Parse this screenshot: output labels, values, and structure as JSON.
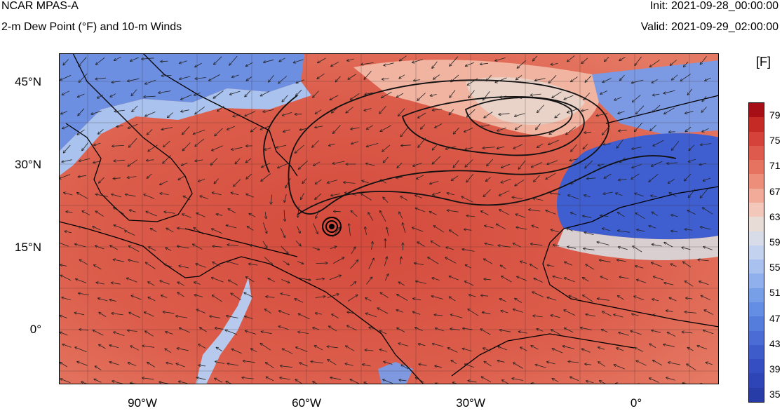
{
  "header": {
    "title": "NCAR MPAS-A",
    "subtitle": "2-m Dew Point (°F) and 10-m Winds",
    "init": "Init: 2021-09-28_00:00:00",
    "valid": "Valid: 2021-09-29_02:00:00"
  },
  "map": {
    "lat_labels": [
      "45°N",
      "30°N",
      "15°N",
      "0°"
    ],
    "lon_labels": [
      "90°W",
      "60°W",
      "30°W",
      "0°"
    ],
    "colors": {
      "warm_deep": "#d2473b",
      "warm": "#e06a55",
      "warm_light": "#f0a48f",
      "neutral": "#e4d6cf",
      "cool_light": "#a9c3ef",
      "cool": "#5b7ee0",
      "cool_deep": "#3552c2"
    }
  },
  "colorbar": {
    "unit": "[F]",
    "labels": [
      "79",
      "75",
      "71",
      "67",
      "63",
      "59",
      "55",
      "51",
      "47",
      "43",
      "39",
      "35"
    ],
    "colors": [
      "#a50f15",
      "#c52a25",
      "#d4423a",
      "#dd5a4c",
      "#e5735f",
      "#ec8e79",
      "#f2ab98",
      "#f3c7ba",
      "#e8dcd6",
      "#d7dce8",
      "#c2d2ef",
      "#a9c1ef",
      "#8fb0ec",
      "#779fe8",
      "#648ee4",
      "#557ddc",
      "#4a6cd4",
      "#3f5ccb",
      "#354fc2",
      "#2e45b7",
      "#283ca8"
    ]
  }
}
